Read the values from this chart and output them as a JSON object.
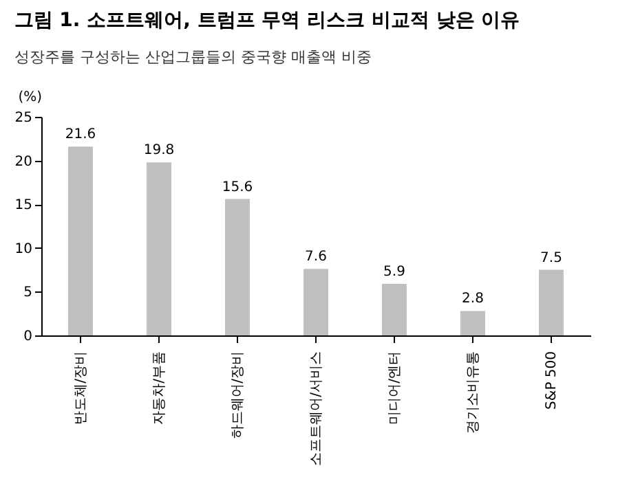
{
  "chart_data": {
    "type": "bar",
    "title": "그림 1. 소프트웨어, 트럼프 무역 리스크 비교적 낮은 이유",
    "subtitle": "성장주를 구성하는 산업그룹들의 중국향 매출액 비중",
    "ylabel": "(%)",
    "categories": [
      "반도체/장비",
      "자동차/부품",
      "하드웨어/장비",
      "소프트웨어/서비스",
      "미디어/엔터",
      "경기소비유통",
      "S&P 500"
    ],
    "values": [
      21.6,
      19.8,
      15.6,
      7.6,
      5.9,
      2.8,
      7.5
    ],
    "color": "#bfbfbf",
    "ylim": [
      0,
      25
    ],
    "yticks": [
      0,
      5,
      10,
      15,
      20,
      25
    ],
    "grid": false,
    "data_labels": true
  }
}
